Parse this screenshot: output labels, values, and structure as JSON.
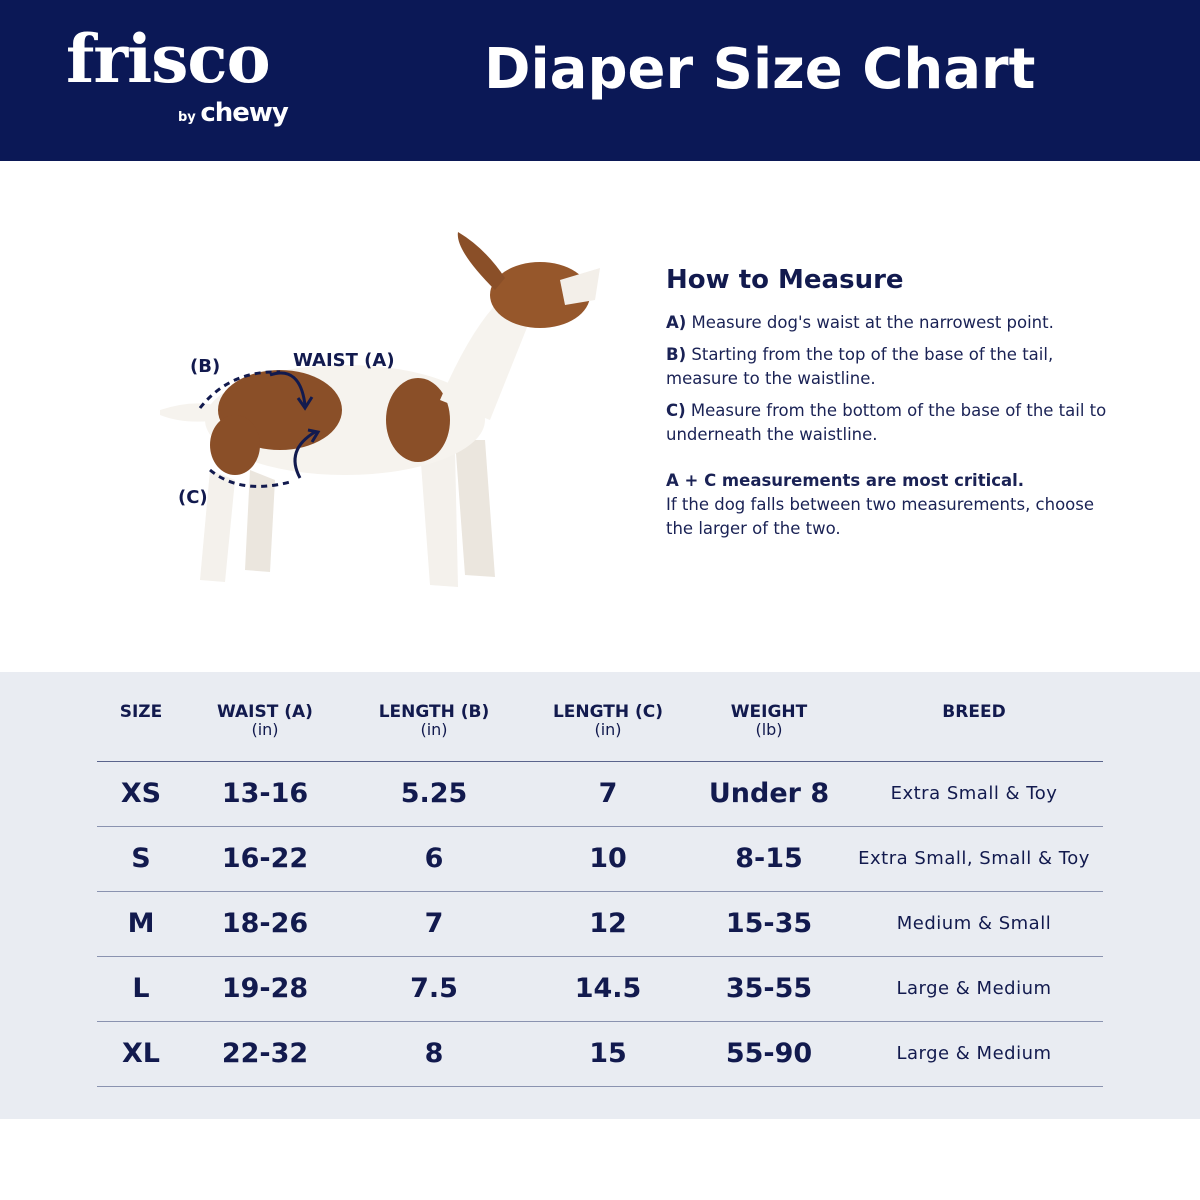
{
  "header": {
    "logo_text": "frisco",
    "logo_sub_by": "by",
    "logo_sub_brand": "chewy",
    "title": "Diaper Size Chart",
    "bg_color": "#0b1856"
  },
  "diagram": {
    "label_b": "(B)",
    "label_waist": "WAIST (A)",
    "label_c": "(C)"
  },
  "how_to_measure": {
    "heading": "How to Measure",
    "steps": [
      {
        "key": "A)",
        "text": " Measure dog's waist at the narrowest point."
      },
      {
        "key": "B)",
        "text": " Starting from the top of the base of the tail, measure to the waistline."
      },
      {
        "key": "C)",
        "text": " Measure from the bottom of the base of the tail to underneath the waistline."
      }
    ],
    "critical": "A + C measurements are most critical.",
    "note": "If the dog falls between two measurements, choose the larger of the two."
  },
  "table": {
    "columns": [
      {
        "label": "SIZE",
        "unit": ""
      },
      {
        "label": "WAIST (A)",
        "unit": "(in)"
      },
      {
        "label": "LENGTH (B)",
        "unit": "(in)"
      },
      {
        "label": "LENGTH (C)",
        "unit": "(in)"
      },
      {
        "label": "WEIGHT",
        "unit": "(lb)"
      },
      {
        "label": "BREED",
        "unit": ""
      }
    ],
    "rows": [
      [
        "XS",
        "13-16",
        "5.25",
        "7",
        "Under 8",
        "Extra Small & Toy"
      ],
      [
        "S",
        "16-22",
        "6",
        "10",
        "8-15",
        "Extra Small, Small & Toy"
      ],
      [
        "M",
        "18-26",
        "7",
        "12",
        "15-35",
        "Medium & Small"
      ],
      [
        "L",
        "19-28",
        "7.5",
        "14.5",
        "35-55",
        "Large & Medium"
      ],
      [
        "XL",
        "22-32",
        "8",
        "15",
        "55-90",
        "Large & Medium"
      ]
    ]
  }
}
